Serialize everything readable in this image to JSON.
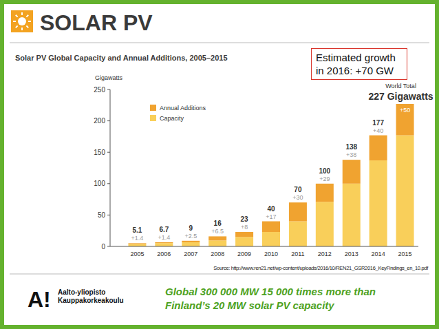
{
  "slide": {
    "header": "SOLAR PV",
    "source": "Source: http://www.ren21.net/wp-content/uploads/2016/10/REN21_GSR2016_KeyFindings_en_10.pdf",
    "footer_text": "Global 300 000 MW 15 000 times more than Finland’s 20 MW solar PV capacity",
    "logo": "A!",
    "logo_lines": [
      "Aalto-yliopisto",
      "Kauppakorkeakoulu"
    ]
  },
  "chart_data": {
    "type": "bar",
    "stacked": true,
    "title": "Solar PV Global Capacity and Annual Additions, 2005–2015",
    "y_label": "Gigawatts",
    "categories": [
      "2005",
      "2006",
      "2007",
      "2008",
      "2009",
      "2010",
      "2011",
      "2012",
      "2013",
      "2014",
      "2015"
    ],
    "series": [
      {
        "name": "Capacity",
        "color": "#f9cf5a",
        "values": [
          3.7,
          5.3,
          6.5,
          9.5,
          15,
          23,
          40,
          71,
          100,
          137,
          177
        ]
      },
      {
        "name": "Annual Additions",
        "color": "#f0a330",
        "values": [
          1.4,
          1.4,
          2.5,
          6.5,
          8,
          17,
          30,
          29,
          38,
          40,
          50
        ],
        "value_labels": [
          "+1.4",
          "+1.4",
          "+2.5",
          "+6.5",
          "+8",
          "+17",
          "+30",
          "+29",
          "+38",
          "+40",
          "+50"
        ]
      }
    ],
    "totals": {
      "values": [
        5.1,
        6.7,
        9,
        16,
        23,
        40,
        70,
        100,
        138,
        177,
        227
      ],
      "value_labels": [
        "5.1",
        "6.7",
        "9",
        "16",
        "23",
        "40",
        "70",
        "100",
        "138",
        "177",
        "227 Gigawatts"
      ]
    },
    "annotations": [
      "Estimated growth in 2016: +70 GW",
      "World Total"
    ],
    "ylim": [
      0,
      250
    ],
    "yticks": [
      0,
      50,
      100,
      150,
      200,
      250
    ],
    "grid": false,
    "legend": "upper left",
    "data_labels": true
  }
}
